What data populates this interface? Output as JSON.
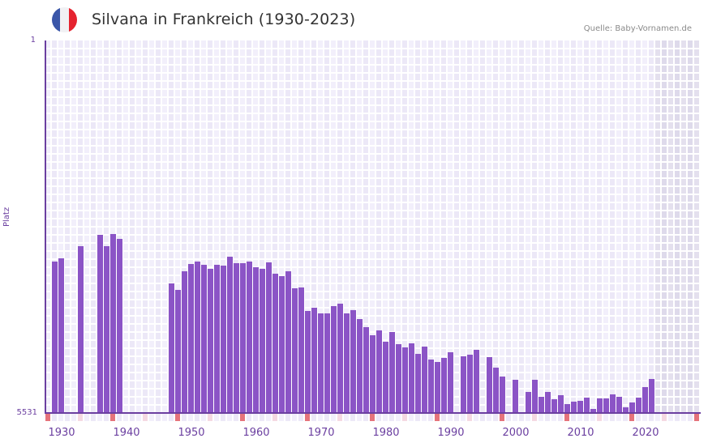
{
  "header": {
    "title": "Silvana in Frankreich (1930-2023)",
    "source": "Quelle: Baby-Vornamen.de",
    "flag_colors": [
      "#3a56a8",
      "#f1f1f4",
      "#e5232f"
    ]
  },
  "colors": {
    "bar": "#8b54c6",
    "axis": "#6b3fa0",
    "grid_bg_a": "#f2effb",
    "grid_bg_b": "#ece8f7",
    "future_bg_a": "#e4e0ee",
    "future_bg_b": "#dedaeb",
    "decade_marker": "#e5737b",
    "half_decade_marker": "#f5d9e2",
    "strip_bg_a": "#f2effb",
    "strip_bg_b": "#ece8f7"
  },
  "chart_data": {
    "type": "bar",
    "title": "Silvana in Frankreich (1930-2023)",
    "xlabel": "",
    "ylabel": "Platz",
    "y_inverted": true,
    "ylim": [
      1,
      5531
    ],
    "ytick_labels": [
      "1",
      "5531"
    ],
    "xlim": [
      1929,
      2029
    ],
    "xtick_labels": [
      "1930",
      "1940",
      "1950",
      "1960",
      "1970",
      "1980",
      "1990",
      "2000",
      "2010",
      "2020"
    ],
    "grid": true,
    "shaded_future_from": 2023,
    "x": [
      1930,
      1931,
      1934,
      1937,
      1938,
      1939,
      1940,
      1948,
      1949,
      1950,
      1951,
      1952,
      1953,
      1954,
      1955,
      1956,
      1957,
      1958,
      1959,
      1960,
      1961,
      1962,
      1963,
      1964,
      1965,
      1966,
      1967,
      1968,
      1969,
      1970,
      1971,
      1972,
      1973,
      1974,
      1975,
      1976,
      1977,
      1978,
      1979,
      1980,
      1981,
      1982,
      1983,
      1984,
      1985,
      1986,
      1987,
      1988,
      1989,
      1990,
      1991,
      1993,
      1994,
      1995,
      1997,
      1998,
      1999,
      2001,
      2003,
      2004,
      2005,
      2006,
      2007,
      2008,
      2009,
      2010,
      2011,
      2012,
      2013,
      2014,
      2015,
      2016,
      2017,
      2018,
      2019,
      2020,
      2021,
      2022
    ],
    "series": [
      {
        "name": "Platz",
        "values": [
          3283,
          3235,
          3054,
          2886,
          3054,
          2874,
          2946,
          3607,
          3703,
          3427,
          3319,
          3283,
          3331,
          3391,
          3331,
          3343,
          3211,
          3307,
          3307,
          3283,
          3367,
          3391,
          3295,
          3463,
          3499,
          3427,
          3679,
          3667,
          4016,
          3968,
          4052,
          4052,
          3944,
          3908,
          4052,
          4004,
          4136,
          4257,
          4377,
          4305,
          4473,
          4329,
          4509,
          4557,
          4497,
          4653,
          4545,
          4737,
          4773,
          4713,
          4629,
          4689,
          4665,
          4593,
          4701,
          4857,
          4989,
          5037,
          5218,
          5037,
          5290,
          5218,
          5326,
          5266,
          5398,
          5362,
          5350,
          5302,
          5470,
          5314,
          5314,
          5254,
          5290,
          5446,
          5374,
          5302,
          5146,
          5026
        ]
      }
    ]
  }
}
